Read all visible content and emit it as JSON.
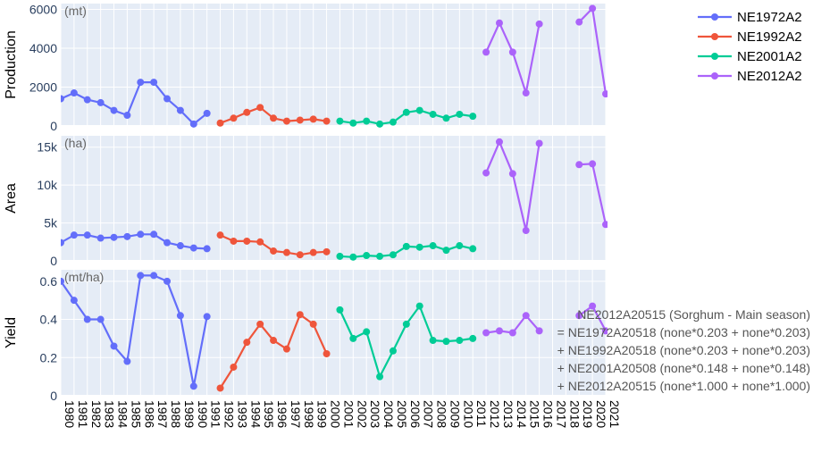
{
  "chart_data": {
    "type": "line",
    "x": [
      "1980",
      "1981",
      "1982",
      "1983",
      "1984",
      "1985",
      "1986",
      "1987",
      "1988",
      "1989",
      "1990",
      "1991",
      "1992",
      "1993",
      "1994",
      "1995",
      "1996",
      "1997",
      "1998",
      "1999",
      "2000",
      "2001",
      "2002",
      "2003",
      "2004",
      "2005",
      "2006",
      "2007",
      "2008",
      "2009",
      "2010",
      "2011",
      "2012",
      "2013",
      "2014",
      "2015",
      "2016",
      "2017",
      "2018",
      "2019",
      "2020",
      "2021"
    ],
    "legend": {
      "placement": "top-right",
      "entries": [
        "NE1972A2",
        "NE1992A2",
        "NE2001A2",
        "NE2012A2"
      ]
    },
    "series_colors": {
      "NE1972A2": "#636efa",
      "NE1992A2": "#ef553b",
      "NE2001A2": "#00cc96",
      "NE2012A2": "#ab63fa"
    },
    "grid": true,
    "panels": [
      {
        "key": "production",
        "ylabel": "Production",
        "unit": "(mt)",
        "ylim": [
          0,
          6300
        ],
        "yticks": [
          0,
          2000,
          4000,
          6000
        ],
        "ytick_labels": [
          "0",
          "2000",
          "4000",
          "6000"
        ],
        "series": [
          {
            "name": "NE1972A2",
            "years": [
              1980,
              1981,
              1982,
              1983,
              1984,
              1985,
              1986,
              1987,
              1988,
              1989,
              1990,
              1991
            ],
            "values": [
              1400,
              1700,
              1350,
              1200,
              800,
              550,
              2250,
              2250,
              1400,
              800,
              100,
              650
            ]
          },
          {
            "name": "NE1992A2",
            "years": [
              1992,
              1993,
              1994,
              1995,
              1996,
              1997,
              1998,
              1999,
              2000
            ],
            "values": [
              150,
              400,
              700,
              950,
              400,
              250,
              300,
              350,
              250
            ]
          },
          {
            "name": "NE2001A2",
            "years": [
              2001,
              2002,
              2003,
              2004,
              2005,
              2006,
              2007,
              2008,
              2009,
              2010,
              2011
            ],
            "values": [
              250,
              150,
              250,
              100,
              200,
              700,
              800,
              600,
              400,
              600,
              500
            ]
          },
          {
            "name": "NE2012A2",
            "years": [
              2012,
              2013,
              2014,
              2015,
              2016,
              null,
              null,
              2019,
              2020,
              2021
            ],
            "values": [
              3800,
              5300,
              3800,
              1700,
              5250,
              null,
              null,
              5350,
              6050,
              1650
            ]
          }
        ]
      },
      {
        "key": "area",
        "ylabel": "Area",
        "unit": "(ha)",
        "ylim": [
          0,
          16500
        ],
        "yticks": [
          0,
          5000,
          10000,
          15000
        ],
        "ytick_labels": [
          "0",
          "5k",
          "10k",
          "15k"
        ],
        "series": [
          {
            "name": "NE1972A2",
            "years": [
              1980,
              1981,
              1982,
              1983,
              1984,
              1985,
              1986,
              1987,
              1988,
              1989,
              1990,
              1991
            ],
            "values": [
              2400,
              3400,
              3400,
              3000,
              3100,
              3200,
              3500,
              3500,
              2400,
              2000,
              1700,
              1600
            ]
          },
          {
            "name": "NE1992A2",
            "years": [
              1992,
              1993,
              1994,
              1995,
              1996,
              1997,
              1998,
              1999,
              2000
            ],
            "values": [
              3400,
              2600,
              2600,
              2500,
              1300,
              1100,
              800,
              1100,
              1200
            ]
          },
          {
            "name": "NE2001A2",
            "years": [
              2001,
              2002,
              2003,
              2004,
              2005,
              2006,
              2007,
              2008,
              2009,
              2010,
              2011
            ],
            "values": [
              600,
              500,
              700,
              600,
              800,
              1900,
              1800,
              2000,
              1400,
              2000,
              1600
            ]
          },
          {
            "name": "NE2012A2",
            "years": [
              2012,
              2013,
              2014,
              2015,
              2016,
              null,
              null,
              2019,
              2020,
              2021
            ],
            "values": [
              11600,
              15700,
              11500,
              4000,
              15500,
              null,
              null,
              12700,
              12800,
              4800
            ]
          }
        ]
      },
      {
        "key": "yield",
        "ylabel": "Yield",
        "unit": "(mt/ha)",
        "ylim": [
          0,
          0.66
        ],
        "yticks": [
          0,
          0.2,
          0.4,
          0.6
        ],
        "ytick_labels": [
          "0",
          "0.2",
          "0.4",
          "0.6"
        ],
        "series": [
          {
            "name": "NE1972A2",
            "years": [
              1980,
              1981,
              1982,
              1983,
              1984,
              1985,
              1986,
              1987,
              1988,
              1989,
              1990,
              1991
            ],
            "values": [
              0.6,
              0.5,
              0.4,
              0.4,
              0.26,
              0.18,
              0.63,
              0.63,
              0.6,
              0.42,
              0.05,
              0.415
            ]
          },
          {
            "name": "NE1992A2",
            "years": [
              1992,
              1993,
              1994,
              1995,
              1996,
              1997,
              1998,
              1999,
              2000
            ],
            "values": [
              0.04,
              0.15,
              0.28,
              0.375,
              0.29,
              0.245,
              0.425,
              0.375,
              0.22
            ]
          },
          {
            "name": "NE2001A2",
            "years": [
              2001,
              2002,
              2003,
              2004,
              2005,
              2006,
              2007,
              2008,
              2009,
              2010,
              2011
            ],
            "values": [
              0.45,
              0.3,
              0.335,
              0.1,
              0.235,
              0.375,
              0.47,
              0.29,
              0.285,
              0.29,
              0.3
            ]
          },
          {
            "name": "NE2012A2",
            "years": [
              2012,
              2013,
              2014,
              2015,
              2016,
              null,
              null,
              2019,
              2020,
              2021
            ],
            "values": [
              0.33,
              0.34,
              0.33,
              0.42,
              0.34,
              null,
              null,
              0.42,
              0.47,
              0.34
            ]
          }
        ]
      }
    ],
    "annotation": [
      "NE2012A20515 (Sorghum - Main season)",
      "= NE1972A20518 (none*0.203 + none*0.203)",
      "+ NE1992A20518 (none*0.203 + none*0.203)",
      "+ NE2001A20508 (none*0.148 + none*0.148)",
      "+ NE2012A20515 (none*1.000 + none*1.000)"
    ]
  }
}
